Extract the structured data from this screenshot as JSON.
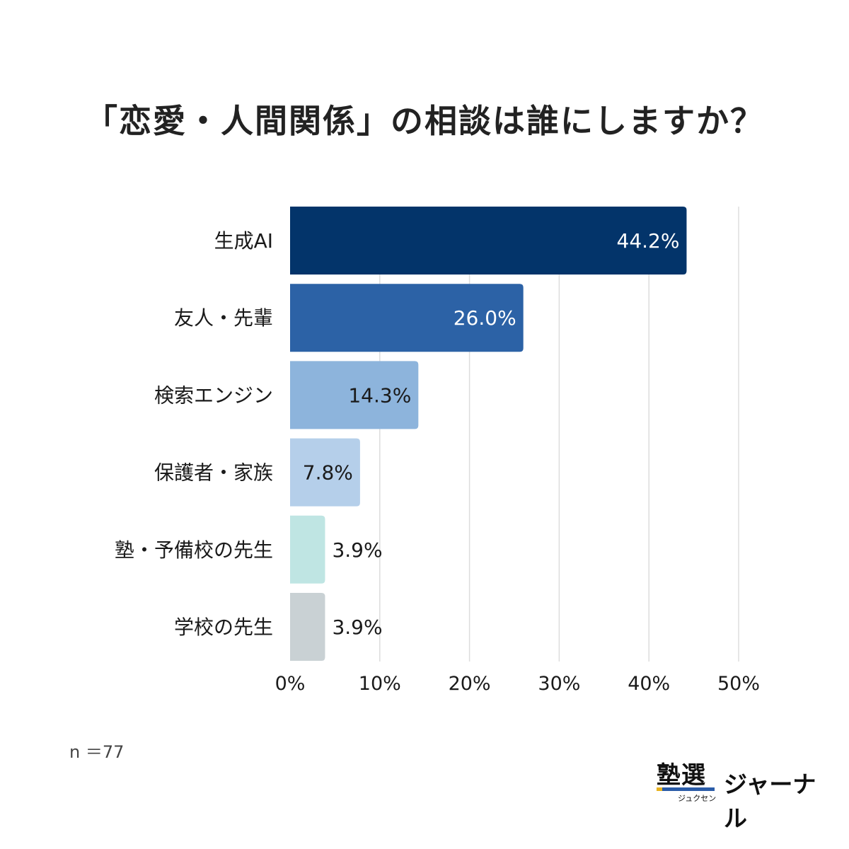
{
  "chart_data": {
    "type": "bar",
    "orientation": "horizontal",
    "title": "「恋愛・人間関係」の相談は誰にしますか？",
    "categories": [
      "生成AI",
      "友人・先輩",
      "検索エンジン",
      "保護者・家族",
      "塾・予備校の先生",
      "学校の先生"
    ],
    "values": [
      44.2,
      26.0,
      14.3,
      7.8,
      3.9,
      3.9
    ],
    "value_labels": [
      "44.2%",
      "26.0%",
      "14.3%",
      "7.8%",
      "3.9%",
      "3.9%"
    ],
    "colors": [
      "#03346a",
      "#2c62a6",
      "#8db4dc",
      "#b5cfea",
      "#bfe5e3",
      "#c9d1d4"
    ],
    "label_colors": [
      "#ffffff",
      "#ffffff",
      "#1a1a1a",
      "#1a1a1a",
      "#1a1a1a",
      "#1a1a1a"
    ],
    "label_inside": [
      true,
      true,
      true,
      true,
      false,
      false
    ],
    "x_ticks": [
      0,
      10,
      20,
      30,
      40,
      50
    ],
    "x_tick_labels": [
      "0%",
      "10%",
      "20%",
      "30%",
      "40%",
      "50%"
    ],
    "xlim": [
      0,
      50
    ],
    "grid": true
  },
  "note": "n ＝77",
  "brand": {
    "mark": "塾選",
    "ruby": "ジュクセン",
    "name": "ジャーナル"
  }
}
